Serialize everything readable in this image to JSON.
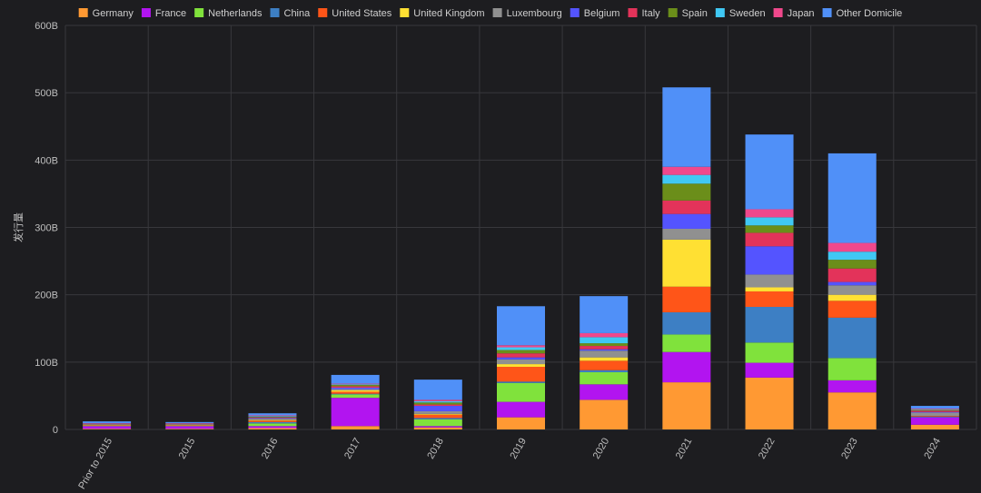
{
  "chart_data": {
    "type": "bar",
    "stacked": true,
    "title": "",
    "xlabel": "",
    "ylabel": "发行量",
    "ylim": [
      0,
      600
    ],
    "yticks": [
      0,
      100,
      200,
      300,
      400,
      500,
      600
    ],
    "ytick_labels": [
      "0",
      "100B",
      "200B",
      "300B",
      "400B",
      "500B",
      "600B"
    ],
    "grid": true,
    "legend_position": "top",
    "categories": [
      "Prior to 2015",
      "2015",
      "2016",
      "2017",
      "2018",
      "2019",
      "2020",
      "2021",
      "2022",
      "2023",
      "2024"
    ],
    "series": [
      {
        "name": "Germany",
        "color": "#ff9933",
        "values": [
          1,
          1,
          2,
          5,
          3,
          18,
          44,
          70,
          77,
          55,
          7
        ]
      },
      {
        "name": "France",
        "color": "#b214f0",
        "values": [
          4,
          4,
          3,
          42,
          2,
          23,
          23,
          45,
          22,
          18,
          11
        ]
      },
      {
        "name": "Netherlands",
        "color": "#80e23c",
        "values": [
          1,
          1,
          4,
          5,
          10,
          28,
          18,
          26,
          30,
          33,
          0
        ]
      },
      {
        "name": "China",
        "color": "#3d7fc4",
        "values": [
          0,
          0,
          2,
          1,
          2,
          2,
          3,
          33,
          53,
          60,
          1
        ]
      },
      {
        "name": "United States",
        "color": "#ff5518",
        "values": [
          1,
          1,
          2,
          3,
          5,
          22,
          14,
          38,
          23,
          25,
          1
        ]
      },
      {
        "name": "United Kingdom",
        "color": "#ffe033",
        "values": [
          0,
          0,
          1,
          2,
          1,
          4,
          5,
          70,
          6,
          9,
          0
        ]
      },
      {
        "name": "Luxembourg",
        "color": "#909090",
        "values": [
          1,
          1,
          2,
          2,
          4,
          7,
          10,
          16,
          19,
          14,
          5
        ]
      },
      {
        "name": "Belgium",
        "color": "#5454ff",
        "values": [
          0,
          0,
          1,
          2,
          8,
          3,
          2,
          22,
          42,
          5,
          1
        ]
      },
      {
        "name": "Italy",
        "color": "#e3335a",
        "values": [
          1,
          1,
          1,
          2,
          2,
          6,
          5,
          20,
          20,
          20,
          2
        ]
      },
      {
        "name": "Spain",
        "color": "#6b8e1a",
        "values": [
          0,
          0,
          1,
          2,
          3,
          5,
          4,
          25,
          11,
          13,
          1
        ]
      },
      {
        "name": "Sweden",
        "color": "#40c8f4",
        "values": [
          0,
          0,
          1,
          1,
          2,
          4,
          9,
          13,
          12,
          12,
          1
        ]
      },
      {
        "name": "Japan",
        "color": "#f0488c",
        "values": [
          0,
          0,
          1,
          1,
          2,
          3,
          6,
          12,
          12,
          13,
          1
        ]
      },
      {
        "name": "Other Domicile",
        "color": "#5090f8",
        "values": [
          3,
          2,
          3,
          13,
          30,
          58,
          55,
          118,
          111,
          133,
          4
        ]
      }
    ]
  }
}
